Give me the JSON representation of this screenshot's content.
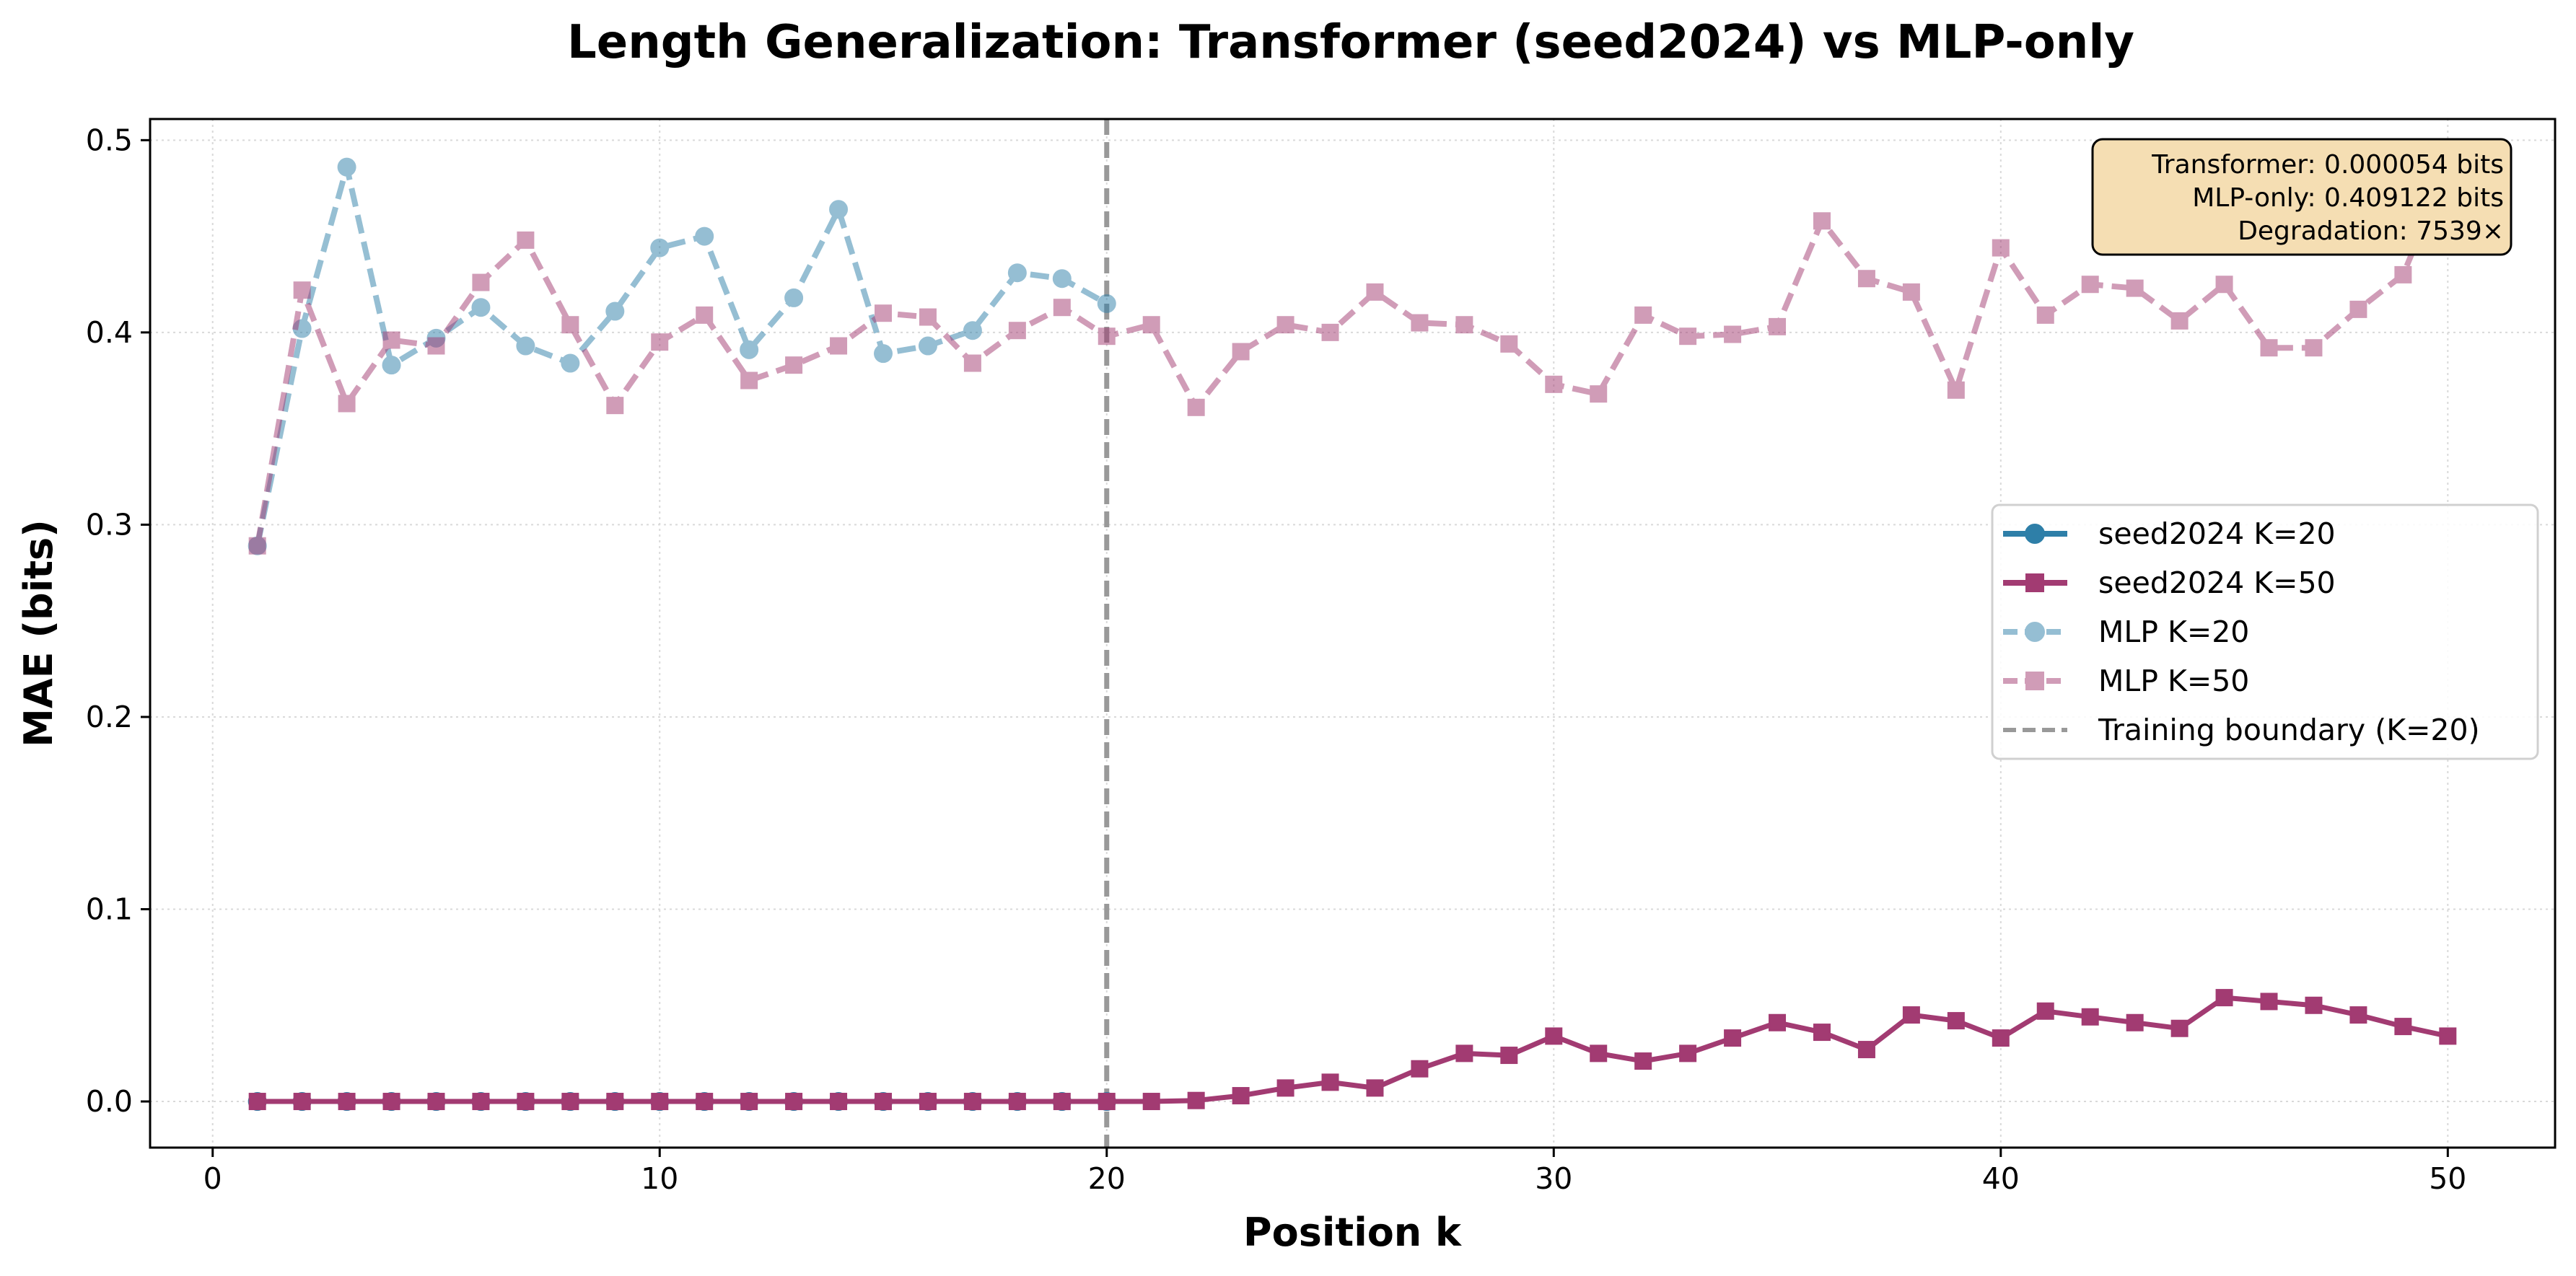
{
  "chart_data": {
    "type": "line",
    "title": "Length Generalization: Transformer (seed2024) vs MLP-only",
    "xlabel": "Position k",
    "ylabel": "MAE (bits)",
    "xlim": [
      -1.4,
      52.4
    ],
    "ylim": [
      -0.024,
      0.511
    ],
    "xticks": [
      0,
      10,
      20,
      30,
      40,
      50
    ],
    "xtick_labels": [
      "0",
      "10",
      "20",
      "30",
      "40",
      "50"
    ],
    "yticks": [
      0.0,
      0.1,
      0.2,
      0.3,
      0.4,
      0.5
    ],
    "ytick_labels": [
      "0.0",
      "0.1",
      "0.2",
      "0.3",
      "0.4",
      "0.5"
    ],
    "grid": true,
    "legend_position": "center-right",
    "series": [
      {
        "name": "seed2024 K=20",
        "color": "#2e7fa8",
        "marker": "circle",
        "linestyle": "solid",
        "alpha": 1.0,
        "x": [
          1,
          2,
          3,
          4,
          5,
          6,
          7,
          8,
          9,
          10,
          11,
          12,
          13,
          14,
          15,
          16,
          17,
          18,
          19,
          20
        ],
        "values": [
          0,
          0,
          0,
          0,
          0,
          0,
          0,
          0,
          0,
          0,
          0,
          0,
          0,
          0,
          0,
          0,
          0,
          0,
          0,
          0
        ]
      },
      {
        "name": "seed2024 K=50",
        "color": "#a23b72",
        "marker": "square",
        "linestyle": "solid",
        "alpha": 1.0,
        "x": [
          1,
          2,
          3,
          4,
          5,
          6,
          7,
          8,
          9,
          10,
          11,
          12,
          13,
          14,
          15,
          16,
          17,
          18,
          19,
          20,
          21,
          22,
          23,
          24,
          25,
          26,
          27,
          28,
          29,
          30,
          31,
          32,
          33,
          34,
          35,
          36,
          37,
          38,
          39,
          40,
          41,
          42,
          43,
          44,
          45,
          46,
          47,
          48,
          49,
          50
        ],
        "values": [
          0,
          0,
          0,
          0,
          0,
          0,
          0,
          0,
          0,
          0,
          0,
          0,
          0,
          0,
          0,
          0,
          0,
          0,
          0,
          0,
          0,
          0.0005,
          0.003,
          0.007,
          0.01,
          0.007,
          0.017,
          0.025,
          0.024,
          0.034,
          0.025,
          0.021,
          0.025,
          0.033,
          0.041,
          0.036,
          0.027,
          0.045,
          0.042,
          0.033,
          0.047,
          0.044,
          0.041,
          0.038,
          0.054,
          0.052,
          0.05,
          0.045,
          0.039,
          0.034
        ]
      },
      {
        "name": "MLP K=20",
        "color": "#2e7fa8",
        "marker": "circle",
        "linestyle": "dashed",
        "alpha": 0.5,
        "x": [
          1,
          2,
          3,
          4,
          5,
          6,
          7,
          8,
          9,
          10,
          11,
          12,
          13,
          14,
          15,
          16,
          17,
          18,
          19,
          20
        ],
        "values": [
          0.289,
          0.402,
          0.486,
          0.383,
          0.397,
          0.413,
          0.393,
          0.384,
          0.411,
          0.444,
          0.45,
          0.391,
          0.418,
          0.464,
          0.389,
          0.393,
          0.401,
          0.431,
          0.428,
          0.415
        ]
      },
      {
        "name": "MLP K=50",
        "color": "#a23b72",
        "marker": "square",
        "linestyle": "dashed",
        "alpha": 0.5,
        "x": [
          1,
          2,
          3,
          4,
          5,
          6,
          7,
          8,
          9,
          10,
          11,
          12,
          13,
          14,
          15,
          16,
          17,
          18,
          19,
          20,
          21,
          22,
          23,
          24,
          25,
          26,
          27,
          28,
          29,
          30,
          31,
          32,
          33,
          34,
          35,
          36,
          37,
          38,
          39,
          40,
          41,
          42,
          43,
          44,
          45,
          46,
          47,
          48,
          49,
          50
        ],
        "values": [
          0.289,
          0.422,
          0.363,
          0.396,
          0.393,
          0.426,
          0.448,
          0.404,
          0.362,
          0.395,
          0.409,
          0.375,
          0.383,
          0.393,
          0.41,
          0.408,
          0.384,
          0.401,
          0.413,
          0.398,
          0.404,
          0.361,
          0.39,
          0.404,
          0.4,
          0.421,
          0.405,
          0.404,
          0.394,
          0.373,
          0.368,
          0.409,
          0.398,
          0.399,
          0.403,
          0.458,
          0.428,
          0.421,
          0.37,
          0.444,
          0.409,
          0.425,
          0.423,
          0.406,
          0.425,
          0.392,
          0.392,
          0.412,
          0.43,
          0.486
        ]
      }
    ],
    "reference_line": {
      "name": "Training boundary (K=20)",
      "x": 20,
      "color": "#999999",
      "linestyle": "dashed"
    },
    "annotation": {
      "lines": [
        "Transformer: 0.000054 bits",
        "MLP-only: 0.409122 bits",
        "Degradation: 7539×"
      ],
      "position": "top-right",
      "bg_color": "#f5deb3"
    }
  }
}
